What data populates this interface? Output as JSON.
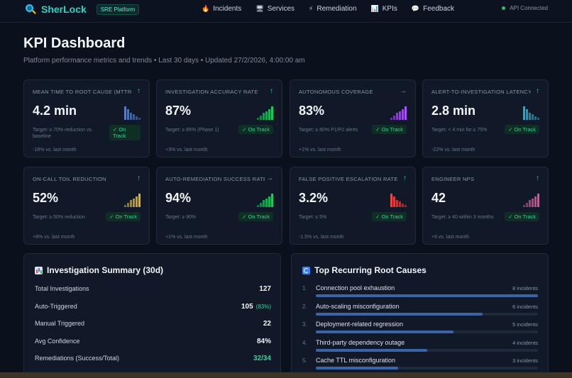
{
  "brand": {
    "name": "SherLock",
    "badge": "SRE Platform"
  },
  "nav": [
    {
      "label": "Incidents",
      "icon": "🔥"
    },
    {
      "label": "Services",
      "icon": "🖥"
    },
    {
      "label": "Remediation",
      "icon": "⚡"
    },
    {
      "label": "KPIs",
      "icon": "📊"
    },
    {
      "label": "Feedback",
      "icon": "💬"
    }
  ],
  "api_status": "API Connected",
  "page": {
    "title": "KPI Dashboard",
    "subtitle": "Platform performance metrics and trends • Last 30 days • Updated 27/2/2026, 4:00:00 am"
  },
  "kpis": [
    {
      "name": "Mean Time to Root Cause (MTTRC)",
      "value": "4.2 min",
      "target": "Target: ≥ 70% reduction vs. baseline",
      "status": "✓ On Track",
      "delta": "-18% vs. last month",
      "trend": "↑",
      "trend_dir": "up",
      "spark_color": "#3b82f6",
      "spark": [
        1.0,
        0.8,
        0.55,
        0.4,
        0.25,
        0.15
      ]
    },
    {
      "name": "Investigation Accuracy Rate",
      "value": "87%",
      "target": "Target: ≥ 85% (Phase 1)",
      "status": "✓ On Track",
      "delta": "+3% vs. last month",
      "trend": "↑",
      "trend_dir": "up",
      "spark_color": "#22c55e",
      "spark": [
        0.15,
        0.3,
        0.5,
        0.65,
        0.8,
        1.0
      ]
    },
    {
      "name": "Autonomous Coverage",
      "value": "83%",
      "target": "Target: ≥ 80% P1/P2 alerts",
      "status": "✓ On Track",
      "delta": "+1% vs. last month",
      "trend": "→",
      "trend_dir": "flat",
      "spark_color": "#a855f7",
      "spark": [
        0.15,
        0.3,
        0.5,
        0.65,
        0.8,
        1.0
      ]
    },
    {
      "name": "Alert-to-Investigation Latency",
      "value": "2.8 min",
      "target": "Target: < 4 min for ≥ 75%",
      "status": "✓ On Track",
      "delta": "-22% vs. last month",
      "trend": "↑",
      "trend_dir": "up",
      "spark_color": "#06b6d4",
      "spark": [
        1.0,
        0.8,
        0.55,
        0.4,
        0.25,
        0.15
      ]
    },
    {
      "name": "On-Call Toil Reduction",
      "value": "52%",
      "target": "Target: ≥ 50% reduction",
      "status": "✓ On Track",
      "delta": "+8% vs. last month",
      "trend": "↑",
      "trend_dir": "up",
      "spark_color": "#eab308",
      "spark": [
        0.15,
        0.3,
        0.5,
        0.65,
        0.8,
        1.0
      ]
    },
    {
      "name": "Auto-Remediation Success Rate",
      "value": "94%",
      "target": "Target: ≥ 90%",
      "status": "✓ On Track",
      "delta": "+1% vs. last month",
      "trend": "→",
      "trend_dir": "flat",
      "spark_color": "#22c55e",
      "spark": [
        0.15,
        0.3,
        0.5,
        0.65,
        0.8,
        1.0
      ]
    },
    {
      "name": "False Positive Escalation Rate",
      "value": "3.2%",
      "target": "Target: ≤ 5%",
      "status": "✓ On Track",
      "delta": "-1.5% vs. last month",
      "trend": "↑",
      "trend_dir": "up",
      "spark_color": "#ef4444",
      "spark": [
        1.0,
        0.8,
        0.55,
        0.4,
        0.25,
        0.15
      ]
    },
    {
      "name": "Engineer NPS",
      "value": "42",
      "target": "Target: ≥ 40 within 3 months",
      "status": "✓ On Track",
      "delta": "+6 vs. last month",
      "trend": "↑",
      "trend_dir": "up",
      "spark_color": "#ec4899",
      "spark": [
        0.15,
        0.3,
        0.5,
        0.65,
        0.8,
        1.0
      ]
    }
  ],
  "summary": {
    "title": "Investigation Summary (30d)",
    "rows": [
      {
        "label": "Total Investigations",
        "value": "127",
        "extra": ""
      },
      {
        "label": "Auto-Triggered",
        "value": "105",
        "extra": "(83%)"
      },
      {
        "label": "Manual Triggered",
        "value": "22",
        "extra": ""
      },
      {
        "label": "Avg Confidence",
        "value": "84%",
        "extra": ""
      },
      {
        "label": "Remediations (Success/Total)",
        "value": "32/34",
        "extra": ""
      }
    ]
  },
  "causes": {
    "title": "Top Recurring Root Causes",
    "items": [
      {
        "rank": "1.",
        "name": "Connection pool exhaustion",
        "count": "8 incidents",
        "share": 1.0
      },
      {
        "rank": "2.",
        "name": "Auto-scaling misconfiguration",
        "count": "6 incidents",
        "share": 0.75
      },
      {
        "rank": "3.",
        "name": "Deployment-related regression",
        "count": "5 incidents",
        "share": 0.62
      },
      {
        "rank": "4.",
        "name": "Third-party dependency outage",
        "count": "4 incidents",
        "share": 0.5
      },
      {
        "rank": "5.",
        "name": "Cache TTL misconfiguration",
        "count": "3 incidents",
        "share": 0.37
      }
    ]
  }
}
